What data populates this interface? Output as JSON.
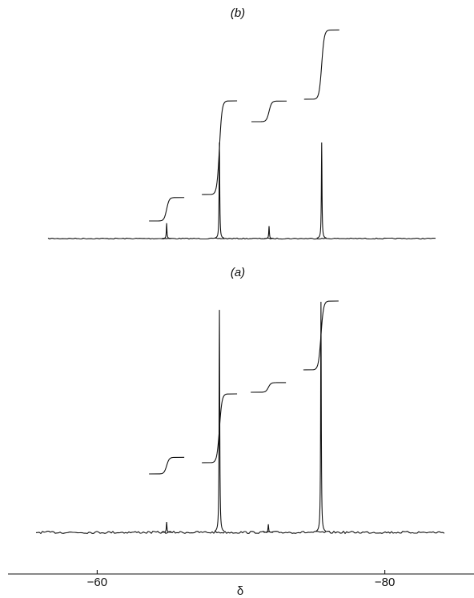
{
  "chart_data": {
    "type": "nmr",
    "xlabel": "δ",
    "xlim": [
      -53.8,
      -86.2
    ],
    "xticks": [
      {
        "value": -60,
        "label": "−60"
      },
      {
        "value": -80,
        "label": "−80"
      }
    ],
    "spectra": [
      {
        "name": "(b)",
        "x": [
          -64.83,
          -68.5,
          -71.95,
          -75.61
        ],
        "values": [
          16,
          100,
          13,
          100
        ],
        "integrals": [
          25,
          100,
          22,
          74
        ]
      },
      {
        "name": "(a)",
        "x": [
          -64.83,
          -68.5,
          -71.9,
          -75.56
        ],
        "values": [
          4.5,
          96.5,
          3.5,
          100
        ],
        "integrals": [
          24,
          100,
          14,
          100
        ]
      }
    ]
  }
}
